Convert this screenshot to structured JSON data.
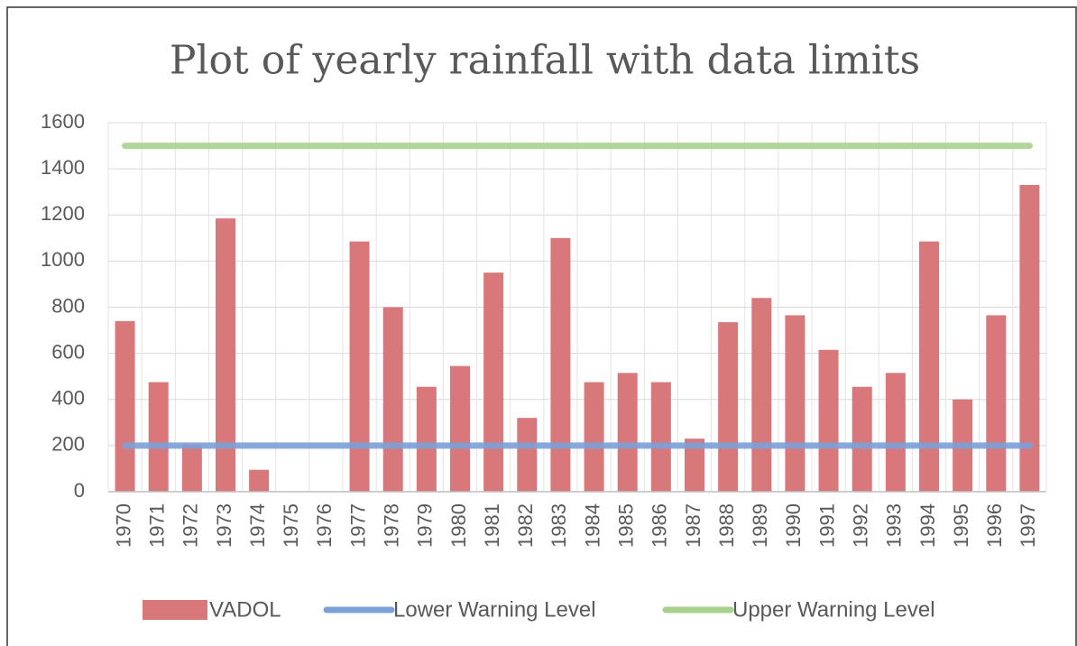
{
  "chart_data": {
    "type": "bar",
    "title": "Plot of yearly rainfall with data limits",
    "categories": [
      "1970",
      "1971",
      "1972",
      "1973",
      "1974",
      "1975",
      "1976",
      "1977",
      "1978",
      "1979",
      "1980",
      "1981",
      "1982",
      "1983",
      "1984",
      "1985",
      "1986",
      "1987",
      "1988",
      "1989",
      "1990",
      "1991",
      "1992",
      "1993",
      "1994",
      "1995",
      "1996",
      "1997"
    ],
    "series": [
      {
        "name": "VADOL",
        "type": "bar",
        "color": "#d9787a",
        "values": [
          740,
          475,
          205,
          1185,
          95,
          0,
          0,
          1085,
          800,
          455,
          545,
          950,
          320,
          1100,
          475,
          515,
          475,
          230,
          735,
          840,
          765,
          615,
          455,
          515,
          1085,
          400,
          765,
          1330
        ]
      },
      {
        "name": "Lower Warning Level",
        "type": "line",
        "color": "#7ca0d8",
        "values": [
          200,
          200,
          200,
          200,
          200,
          200,
          200,
          200,
          200,
          200,
          200,
          200,
          200,
          200,
          200,
          200,
          200,
          200,
          200,
          200,
          200,
          200,
          200,
          200,
          200,
          200,
          200,
          200
        ]
      },
      {
        "name": "Upper Warning Level",
        "type": "line",
        "color": "#a9d18e",
        "values": [
          1500,
          1500,
          1500,
          1500,
          1500,
          1500,
          1500,
          1500,
          1500,
          1500,
          1500,
          1500,
          1500,
          1500,
          1500,
          1500,
          1500,
          1500,
          1500,
          1500,
          1500,
          1500,
          1500,
          1500,
          1500,
          1500,
          1500,
          1500
        ]
      }
    ],
    "ylim": [
      0,
      1600
    ],
    "yticks": [
      0,
      200,
      400,
      600,
      800,
      1000,
      1200,
      1400,
      1600
    ],
    "grid": true
  }
}
